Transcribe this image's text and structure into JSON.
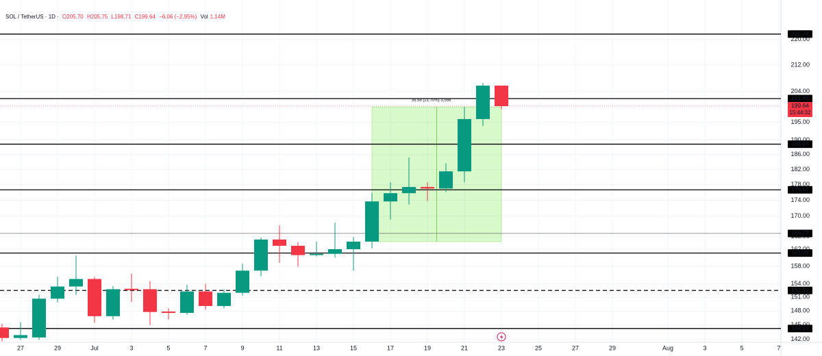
{
  "chart_data": {
    "type": "candlestick",
    "header": {
      "symbol": "SOL / TetherUS · 1D ·",
      "ohlc": [
        "O205.70",
        "H205.75",
        "L198.71",
        "C199.64"
      ],
      "change": "−6.06 (−2.95%)",
      "volume_label": "Vol",
      "volume": "1.14M"
    },
    "categories": [
      null,
      "27",
      null,
      "29",
      null,
      "Jul",
      null,
      "3",
      null,
      "5",
      null,
      "7",
      null,
      "9",
      null,
      "11",
      null,
      "13",
      null,
      "15",
      null,
      "17",
      null,
      "19",
      null,
      "21",
      null,
      "23",
      null,
      "25",
      null,
      "27",
      null,
      "29",
      null,
      null,
      "Aug",
      null,
      "3",
      null,
      "5",
      null,
      "7"
    ],
    "open": [
      144.5,
      142.3,
      142.4,
      150.7,
      153.4,
      155.1,
      146.9,
      152.9,
      152.8,
      147.9,
      147.6,
      152.3,
      149.1,
      152.0,
      157.0,
      164.3,
      162.8,
      160.6,
      160.9,
      162.0,
      163.8,
      173.7,
      175.8,
      177.4,
      177.0,
      181.5,
      195.9,
      205.7,
      null,
      null,
      null,
      null,
      null,
      null,
      null,
      null,
      null,
      null,
      null,
      null,
      null,
      null,
      null
    ],
    "high": [
      145.3,
      145.6,
      151.6,
      155.6,
      160.5,
      155.6,
      153.5,
      156.3,
      154.6,
      148.6,
      153.8,
      154.0,
      152.8,
      158.6,
      164.8,
      167.7,
      163.7,
      163.8,
      168.4,
      164.9,
      175.9,
      178.6,
      185.2,
      178.6,
      183.6,
      199.4,
      206.5,
      205.75,
      null,
      null,
      null,
      null,
      null,
      null,
      null,
      null,
      null,
      null,
      null,
      null,
      null,
      null,
      null
    ],
    "low": [
      141.6,
      141.9,
      141.9,
      149.9,
      151.5,
      145.5,
      146.2,
      150.0,
      145.0,
      146.2,
      147.2,
      148.3,
      148.6,
      151.4,
      155.7,
      158.8,
      157.9,
      160.3,
      160.0,
      157.0,
      162.2,
      169.2,
      172.9,
      173.8,
      176.1,
      178.6,
      193.9,
      198.71,
      null,
      null,
      null,
      null,
      null,
      null,
      null,
      null,
      null,
      null,
      null,
      null,
      null,
      null,
      null
    ],
    "close": [
      142.3,
      142.9,
      150.7,
      153.4,
      155.1,
      146.9,
      152.8,
      152.6,
      147.8,
      147.6,
      152.3,
      149.1,
      152.0,
      157.0,
      164.3,
      162.8,
      160.6,
      160.9,
      162.0,
      163.8,
      173.7,
      175.8,
      177.4,
      177.0,
      181.5,
      195.9,
      205.7,
      199.64,
      null,
      null,
      null,
      null,
      null,
      null,
      null,
      null,
      null,
      null,
      null,
      null,
      null,
      null,
      null
    ],
    "up_color": "#089981",
    "down_color": "#f23645",
    "log_scale": true,
    "grid": true,
    "ylim": [
      141.4,
      233.1
    ],
    "yticks": [
      {
        "value": 142,
        "label": "142.00"
      },
      {
        "value": 145,
        "label": "145.00"
      },
      {
        "value": 148,
        "label": "148.00"
      },
      {
        "value": 151,
        "label": "151.00"
      },
      {
        "value": 154,
        "label": "154.00"
      },
      {
        "value": 158,
        "label": "158.00"
      },
      {
        "value": 162,
        "label": "162.00"
      },
      {
        "value": 165,
        "label": "165.00"
      },
      {
        "value": 170,
        "label": "170.00"
      },
      {
        "value": 174,
        "label": "174.00"
      },
      {
        "value": 178,
        "label": "178.00"
      },
      {
        "value": 182,
        "label": "182.00"
      },
      {
        "value": 186,
        "label": "186.00"
      },
      {
        "value": 190,
        "label": "190.00"
      },
      {
        "value": 195,
        "label": "195.00"
      },
      {
        "value": 204,
        "label": "204.00"
      },
      {
        "value": 212,
        "label": "212.00"
      },
      {
        "value": 220,
        "label": "220.00"
      }
    ],
    "levels": [
      221.78,
      201.85,
      188.85,
      176.67,
      165.77,
      161.08,
      152.52,
      144.28
    ],
    "level_styles": [
      "solid",
      "solid",
      "solid",
      "solid",
      "thin",
      "solid",
      "dashed",
      "solid"
    ],
    "countdown": "15:44:32",
    "measure": {
      "label": "35.58 (21.70%) 3,556",
      "range": [
        163.8,
        199.4
      ]
    }
  }
}
